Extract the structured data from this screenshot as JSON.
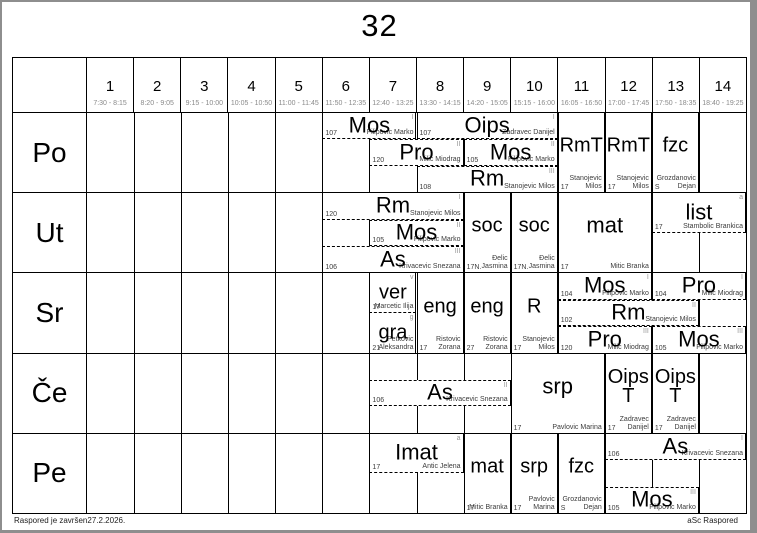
{
  "title": "32",
  "footer": {
    "left": "Raspored je završen27.2.2026.",
    "right": "aSc Raspored"
  },
  "columns": [
    {
      "num": "1",
      "time": "7:30 - 8:15"
    },
    {
      "num": "2",
      "time": "8:20 - 9:05"
    },
    {
      "num": "3",
      "time": "9:15 - 10:00"
    },
    {
      "num": "4",
      "time": "10:05 - 10:50"
    },
    {
      "num": "5",
      "time": "11:00 - 11:45"
    },
    {
      "num": "6",
      "time": "11:50 - 12:35"
    },
    {
      "num": "7",
      "time": "12:40 - 13:25"
    },
    {
      "num": "8",
      "time": "13:30 - 14:15"
    },
    {
      "num": "9",
      "time": "14:20 - 15:05"
    },
    {
      "num": "10",
      "time": "15:15 - 16:00"
    },
    {
      "num": "11",
      "time": "16:05 - 16:50"
    },
    {
      "num": "12",
      "time": "17:00 - 17:45"
    },
    {
      "num": "13",
      "time": "17:50 - 18:35"
    },
    {
      "num": "14",
      "time": "18:40 - 19:25"
    }
  ],
  "days": [
    {
      "label": "Po",
      "lessons": [
        {
          "subject": "Mos",
          "room": "107",
          "teacher": "Filipovic Marko",
          "marker": "I",
          "col_start": 6,
          "col_end": 7,
          "band": "t1"
        },
        {
          "subject": "Oips",
          "room": "107",
          "teacher": "Zadravec Danijel",
          "marker": "I",
          "col_start": 8,
          "col_end": 10,
          "band": "t1"
        },
        {
          "subject": "Pro",
          "room": "120",
          "teacher": "Milic Miodrag",
          "marker": "II",
          "col_start": 7,
          "col_end": 8,
          "band": "t2"
        },
        {
          "subject": "Mos",
          "room": "105",
          "teacher": "Filipovic Marko",
          "marker": "II",
          "col_start": 9,
          "col_end": 10,
          "band": "t2"
        },
        {
          "subject": "Rm",
          "room": "108",
          "teacher": "Stanojevic Milos",
          "marker": "III",
          "col_start": 8,
          "col_end": 10,
          "band": "t3"
        },
        {
          "subject": "RmT",
          "room": "17",
          "teacher": "Stanojevic Milos",
          "marker": "",
          "col_start": 11,
          "col_end": 11,
          "band": "full"
        },
        {
          "subject": "RmT",
          "room": "17",
          "teacher": "Stanojevic Milos",
          "marker": "",
          "col_start": 12,
          "col_end": 12,
          "band": "full"
        },
        {
          "subject": "fzc",
          "room": "S",
          "teacher": "Grozdanovic Dejan",
          "marker": "",
          "col_start": 13,
          "col_end": 13,
          "band": "full"
        }
      ]
    },
    {
      "label": "Ut",
      "lessons": [
        {
          "subject": "Rm",
          "room": "120",
          "teacher": "Stanojevic Milos",
          "marker": "I",
          "col_start": 6,
          "col_end": 8,
          "band": "t1"
        },
        {
          "subject": "Mos",
          "room": "105",
          "teacher": "Filipovic Marko",
          "marker": "II",
          "col_start": 7,
          "col_end": 8,
          "band": "t2"
        },
        {
          "subject": "As",
          "room": "106",
          "teacher": "Krivacevic Snezana",
          "marker": "III",
          "col_start": 6,
          "col_end": 8,
          "band": "t3"
        },
        {
          "subject": "soc",
          "room": "17N.",
          "teacher": "Đelic Jasmina",
          "marker": "",
          "col_start": 9,
          "col_end": 9,
          "band": "full"
        },
        {
          "subject": "soc",
          "room": "17N.",
          "teacher": "Đelic Jasmina",
          "marker": "",
          "col_start": 10,
          "col_end": 10,
          "band": "full"
        },
        {
          "subject": "mat",
          "room": "17",
          "teacher": "Mitic Branka",
          "marker": "",
          "col_start": 11,
          "col_end": 12,
          "band": "full"
        },
        {
          "subject": "list",
          "room": "17",
          "teacher": "Stambolic Brankica",
          "marker": "a",
          "col_start": 13,
          "col_end": 14,
          "band": "th"
        }
      ]
    },
    {
      "label": "Sr",
      "lessons": [
        {
          "subject": "ver",
          "room": "17",
          "teacher": "Marcetic Ilija",
          "marker": "v",
          "col_start": 7,
          "col_end": 7,
          "band": "th"
        },
        {
          "subject": "gra",
          "room": "21",
          "teacher": "Petkovic Aleksandra",
          "marker": "g",
          "col_start": 7,
          "col_end": 7,
          "band": "bh"
        },
        {
          "subject": "eng",
          "room": "17",
          "teacher": "Ristovic Zorana",
          "marker": "",
          "col_start": 8,
          "col_end": 8,
          "band": "full"
        },
        {
          "subject": "eng",
          "room": "27",
          "teacher": "Ristovic Zorana",
          "marker": "",
          "col_start": 9,
          "col_end": 9,
          "band": "full"
        },
        {
          "subject": "R",
          "room": "17",
          "teacher": "Stanojevic Milos",
          "marker": "",
          "col_start": 10,
          "col_end": 10,
          "band": "full"
        },
        {
          "subject": "Mos",
          "room": "104",
          "teacher": "Filipovic Marko",
          "marker": "I",
          "col_start": 11,
          "col_end": 12,
          "band": "t1"
        },
        {
          "subject": "Pro",
          "room": "104",
          "teacher": "Milic Miodrag",
          "marker": "I",
          "col_start": 13,
          "col_end": 14,
          "band": "t1"
        },
        {
          "subject": "Rm",
          "room": "102",
          "teacher": "Stanojevic Milos",
          "marker": "II",
          "col_start": 11,
          "col_end": 13,
          "band": "t2"
        },
        {
          "subject": "Pro",
          "room": "120",
          "teacher": "Milic Miodrag",
          "marker": "III",
          "col_start": 11,
          "col_end": 12,
          "band": "t3"
        },
        {
          "subject": "Mos",
          "room": "105",
          "teacher": "Filipovic Marko",
          "marker": "III",
          "col_start": 13,
          "col_end": 14,
          "band": "t3"
        }
      ]
    },
    {
      "label": "Če",
      "lessons": [
        {
          "subject": "As",
          "room": "106",
          "teacher": "Krivacevic Snezana",
          "marker": "II",
          "col_start": 7,
          "col_end": 9,
          "band": "t2"
        },
        {
          "subject": "srp",
          "room": "17",
          "teacher": "Pavlovic Marina",
          "marker": "",
          "col_start": 10,
          "col_end": 11,
          "band": "full"
        },
        {
          "subject": "Oips T",
          "room": "17",
          "teacher": "Zadravec Danijel",
          "marker": "",
          "col_start": 12,
          "col_end": 12,
          "band": "full"
        },
        {
          "subject": "Oips T",
          "room": "17",
          "teacher": "Zadravec Danijel",
          "marker": "",
          "col_start": 13,
          "col_end": 13,
          "band": "full"
        }
      ]
    },
    {
      "label": "Pe",
      "lessons": [
        {
          "subject": "Imat",
          "room": "17",
          "teacher": "Antic Jelena",
          "marker": "a",
          "col_start": 7,
          "col_end": 8,
          "band": "th"
        },
        {
          "subject": "mat",
          "room": "17",
          "teacher": "Mitic Branka",
          "marker": "",
          "col_start": 9,
          "col_end": 9,
          "band": "full"
        },
        {
          "subject": "srp",
          "room": "17",
          "teacher": "Pavlovic Marina",
          "marker": "",
          "col_start": 10,
          "col_end": 10,
          "band": "full"
        },
        {
          "subject": "fzc",
          "room": "S",
          "teacher": "Grozdanovic Dejan",
          "marker": "",
          "col_start": 11,
          "col_end": 11,
          "band": "full"
        },
        {
          "subject": "As",
          "room": "106",
          "teacher": "Krivacevic Snezana",
          "marker": "I",
          "col_start": 12,
          "col_end": 14,
          "band": "t1"
        },
        {
          "subject": "Mos",
          "room": "105",
          "teacher": "Filipovic Marko",
          "marker": "III",
          "col_start": 12,
          "col_end": 13,
          "band": "t3"
        }
      ]
    }
  ]
}
